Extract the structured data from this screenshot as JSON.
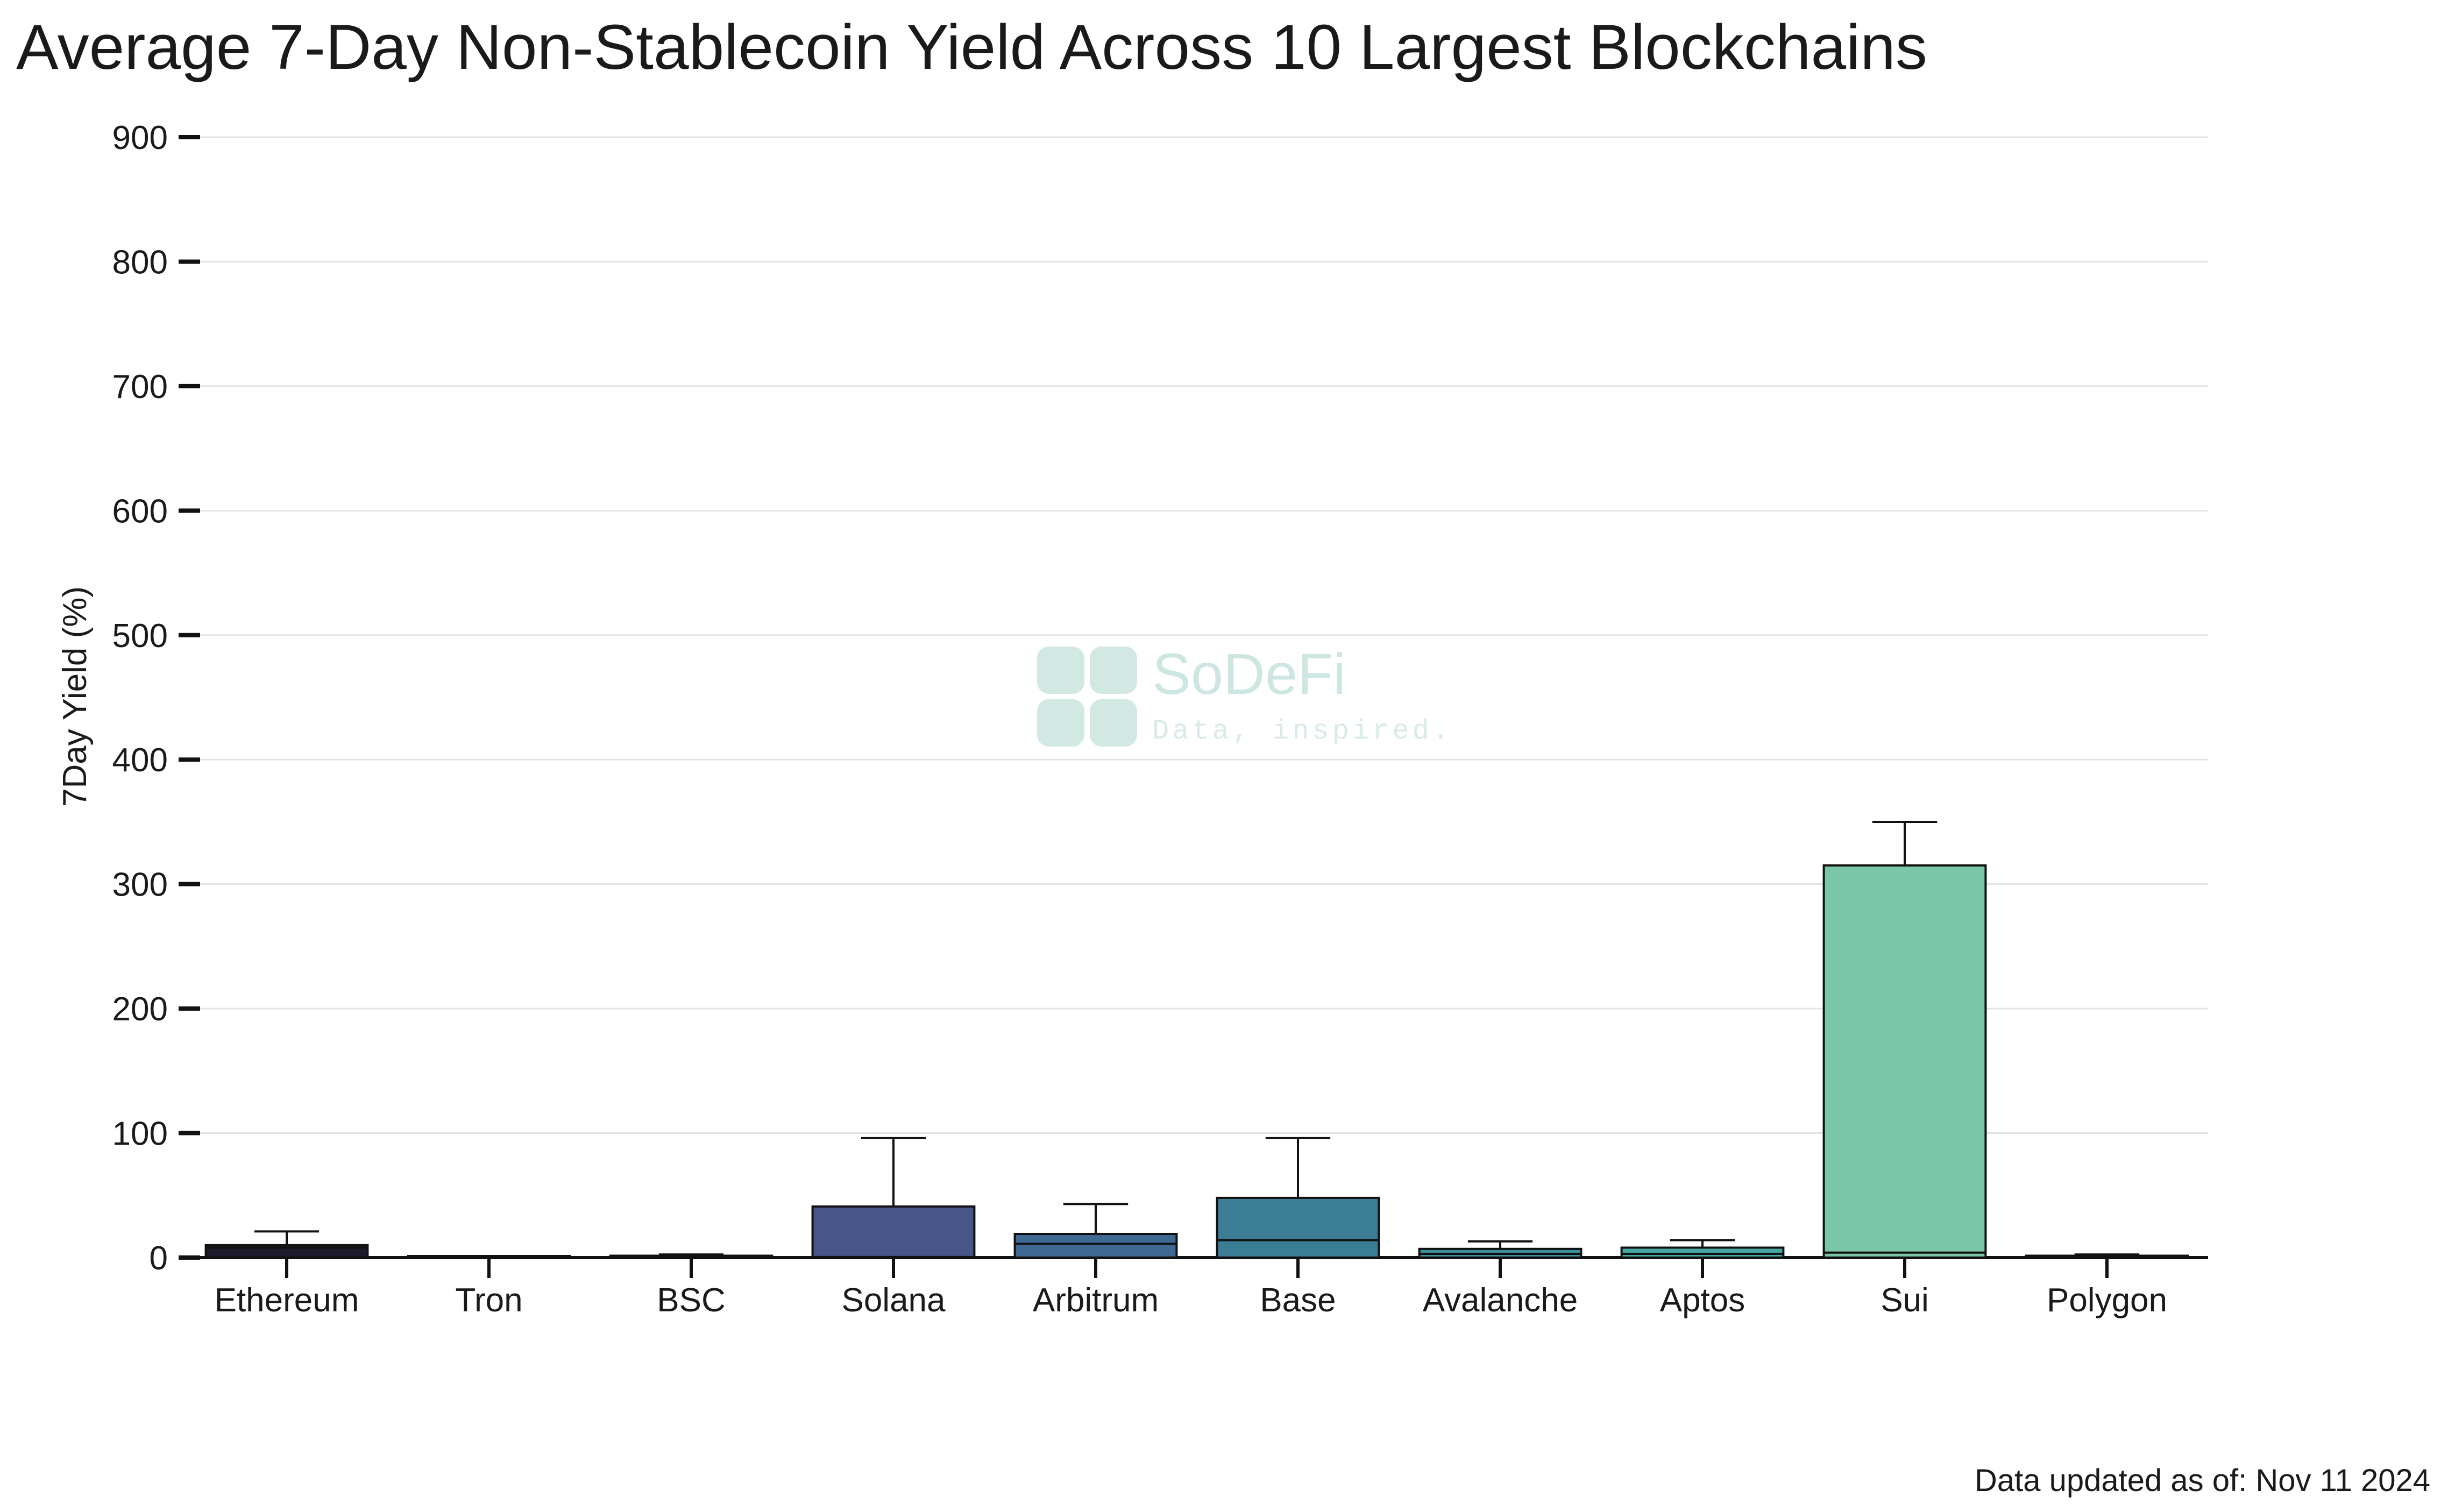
{
  "chart_data": {
    "type": "box",
    "title": "Average 7-Day Non-Stablecoin Yield Across 10 Largest Blockchains",
    "xlabel": "",
    "ylabel": "7Day Yield (%)",
    "ylim": [
      0,
      900
    ],
    "yticks": [
      0,
      100,
      200,
      300,
      400,
      500,
      600,
      700,
      800,
      900
    ],
    "grid": "horizontal",
    "categories": [
      "Ethereum",
      "Tron",
      "BSC",
      "Solana",
      "Arbitrum",
      "Base",
      "Avalanche",
      "Aptos",
      "Sui",
      "Polygon"
    ],
    "boxes": [
      {
        "category": "Ethereum",
        "q1": 0,
        "median": 8,
        "q3": 10,
        "whisker_low": 0,
        "whisker_high": 21,
        "color": "#1d1b2b"
      },
      {
        "category": "Tron",
        "q1": 0,
        "median": 0,
        "q3": 0,
        "whisker_low": 0,
        "whisker_high": 0,
        "color": "#2a2540"
      },
      {
        "category": "BSC",
        "q1": 0,
        "median": 0.5,
        "q3": 1.5,
        "whisker_low": 0,
        "whisker_high": 2.5,
        "color": "#38345e"
      },
      {
        "category": "Solana",
        "q1": 0,
        "median": 0.5,
        "q3": 41,
        "whisker_low": 0,
        "whisker_high": 96,
        "color": "#465689"
      },
      {
        "category": "Arbitrum",
        "q1": 0,
        "median": 11,
        "q3": 19,
        "whisker_low": 0,
        "whisker_high": 43,
        "color": "#3e6993"
      },
      {
        "category": "Base",
        "q1": 0,
        "median": 14,
        "q3": 48,
        "whisker_low": 0,
        "whisker_high": 96,
        "color": "#3c7d96"
      },
      {
        "category": "Avalanche",
        "q1": 0,
        "median": 3,
        "q3": 7,
        "whisker_low": 0,
        "whisker_high": 13,
        "color": "#3d909b"
      },
      {
        "category": "Aptos",
        "q1": 0,
        "median": 3,
        "q3": 8,
        "whisker_low": 0,
        "whisker_high": 14,
        "color": "#47a8a1"
      },
      {
        "category": "Sui",
        "q1": 0,
        "median": 4,
        "q3": 315,
        "whisker_low": 0,
        "whisker_high": 350,
        "color": "#79c6a9"
      },
      {
        "category": "Polygon",
        "q1": 0,
        "median": 0.5,
        "q3": 1.5,
        "whisker_low": 0,
        "whisker_high": 2.5,
        "color": "#98d4b0"
      }
    ],
    "footer": "Data updated as of: Nov 11 2024"
  },
  "watermark": {
    "name": "SoDeFi",
    "tagline": "Data, inspired.",
    "color": "#c9e4df"
  }
}
